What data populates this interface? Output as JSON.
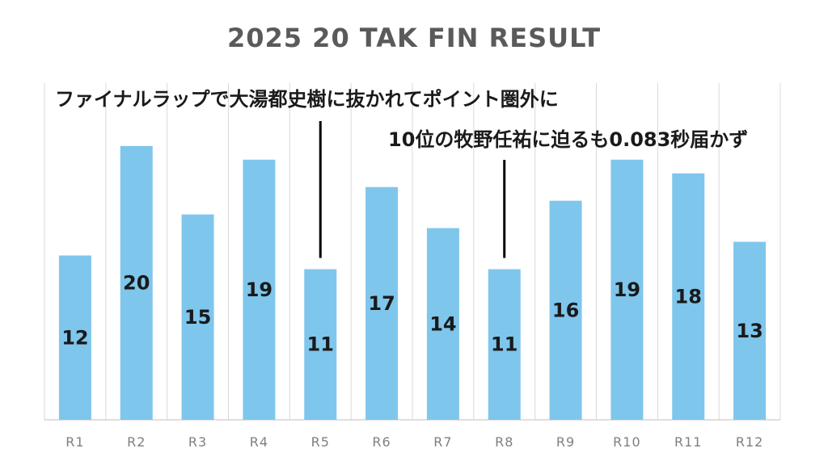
{
  "chart_data": {
    "type": "bar",
    "title": "2025 20 TAK FIN RESULT",
    "categories": [
      "R1",
      "R2",
      "R3",
      "R4",
      "R5",
      "R6",
      "R7",
      "R8",
      "R9",
      "R10",
      "R11",
      "R12"
    ],
    "values": [
      12,
      20,
      15,
      19,
      11,
      17,
      14,
      11,
      16,
      19,
      18,
      13
    ],
    "ylim": [
      0,
      24
    ],
    "grid": true,
    "bar_color": "#7fc6ec",
    "annotations": [
      {
        "category": "R5",
        "text": "ファイナルラップで大湯都史樹に抜かれてポイント圏外に"
      },
      {
        "category": "R8",
        "text": "10位の牧野任祐に迫るも0.083秒届かず"
      }
    ]
  }
}
